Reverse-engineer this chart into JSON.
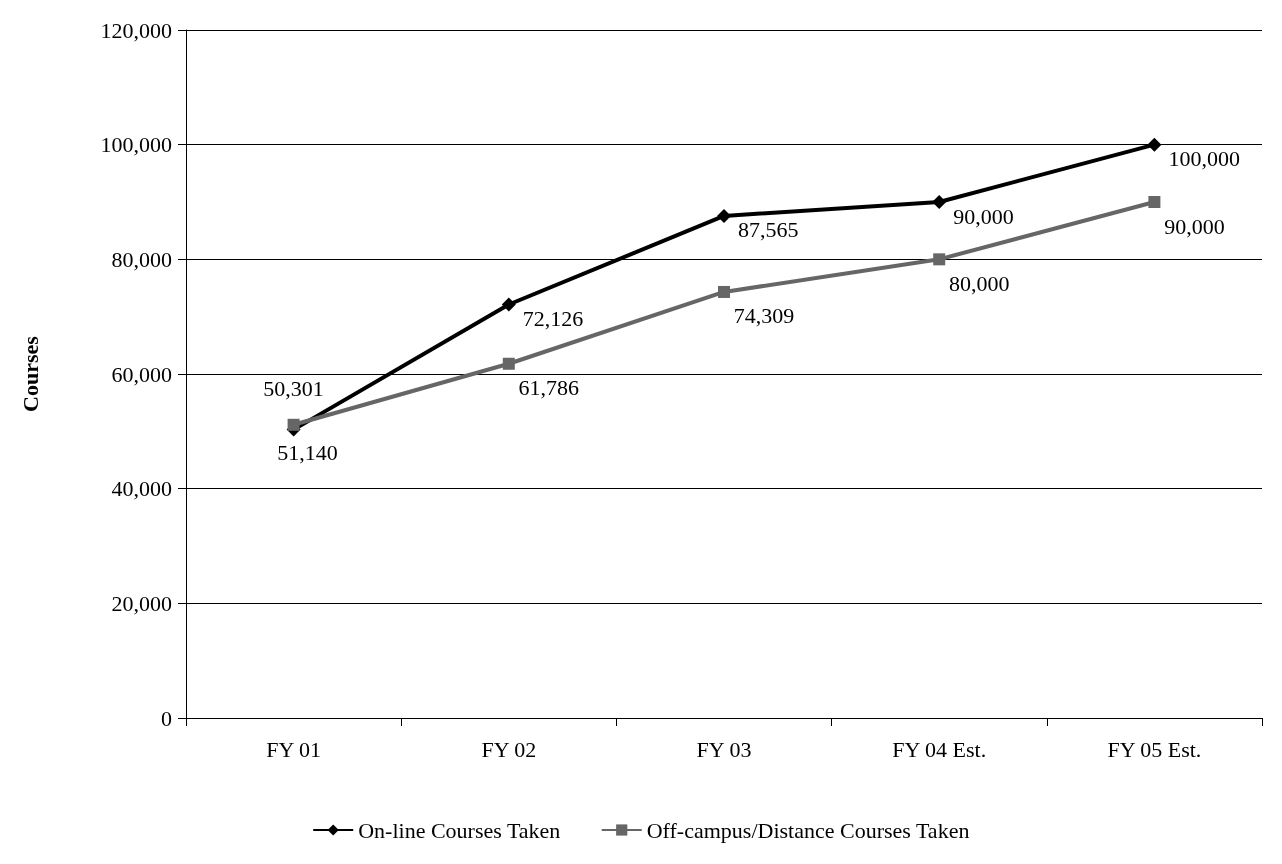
{
  "chart_data": {
    "type": "line",
    "ylabel": "Courses",
    "categories": [
      "FY 01",
      "FY 02",
      "FY 03",
      "FY 04 Est.",
      "FY 05 Est."
    ],
    "series": [
      {
        "name": "On-line Courses Taken",
        "color": "#000000",
        "marker": "diamond",
        "values": [
          50301,
          72126,
          87565,
          90000,
          100000
        ],
        "value_labels": [
          "50,301",
          "72,126",
          "87,565",
          "90,000",
          "100,000"
        ]
      },
      {
        "name": "Off-campus/Distance Courses Taken",
        "color": "#666666",
        "marker": "square",
        "values": [
          51140,
          61786,
          74309,
          80000,
          90000
        ],
        "value_labels": [
          "51,140",
          "61,786",
          "74,309",
          "80,000",
          "90,000"
        ]
      }
    ],
    "ylim": [
      0,
      120000
    ],
    "yticks": [
      0,
      {
        "value": 20000,
        "label": "20,000"
      },
      {
        "value": 40000,
        "label": "40,000"
      },
      {
        "value": 60000,
        "label": "60,000"
      },
      {
        "value": 80000,
        "label": "80,000"
      },
      {
        "value": 100000,
        "label": "100,000"
      },
      {
        "value": 120000,
        "label": "120,000"
      }
    ],
    "grid": "y",
    "legend": "bottom",
    "line_style": "solid"
  }
}
